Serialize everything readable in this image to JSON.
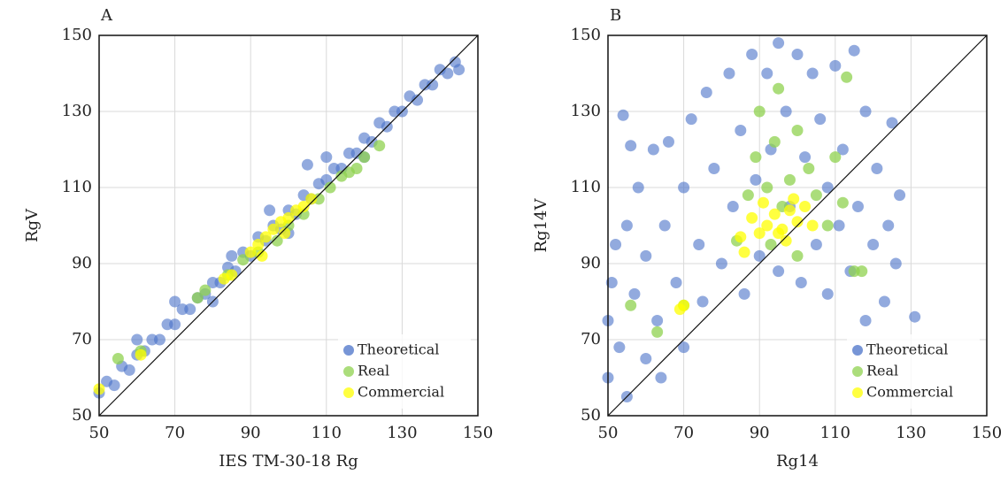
{
  "chart_data": [
    {
      "type": "scatter",
      "title": "A",
      "xlabel": "IES TM-30-18 Rg",
      "ylabel": "RgV",
      "xlim": [
        50,
        150
      ],
      "ylim": [
        50,
        150
      ],
      "xticks": [
        50,
        70,
        90,
        110,
        130,
        150
      ],
      "yticks": [
        50,
        70,
        90,
        110,
        130,
        150
      ],
      "grid": true,
      "identity_line": true,
      "legend": "lower right",
      "series": [
        {
          "name": "Theoretical",
          "color": "#4a72c8",
          "x": [
            50,
            52,
            54,
            56,
            58,
            60,
            62,
            64,
            66,
            68,
            70,
            72,
            74,
            76,
            78,
            80,
            82,
            84,
            86,
            88,
            90,
            92,
            94,
            96,
            98,
            100,
            102,
            104,
            106,
            108,
            110,
            112,
            114,
            116,
            118,
            120,
            122,
            124,
            126,
            128,
            130,
            132,
            134,
            136,
            138,
            140,
            142,
            144,
            145,
            95,
            105,
            60,
            80,
            120,
            100,
            70,
            85,
            110
          ],
          "values": [
            56,
            59,
            58,
            63,
            62,
            66,
            67,
            70,
            70,
            74,
            74,
            78,
            78,
            81,
            82,
            85,
            85,
            89,
            88,
            93,
            92,
            97,
            96,
            100,
            99,
            104,
            103,
            108,
            107,
            111,
            112,
            115,
            115,
            119,
            119,
            123,
            122,
            127,
            126,
            130,
            130,
            134,
            133,
            137,
            137,
            141,
            140,
            143,
            141,
            104,
            116,
            70,
            80,
            118,
            98,
            80,
            92,
            118
          ]
        },
        {
          "name": "Real",
          "color": "#8fd14f",
          "x": [
            55,
            61,
            76,
            78,
            84,
            88,
            92,
            97,
            100,
            104,
            108,
            111,
            114,
            116,
            118,
            120,
            124
          ],
          "values": [
            65,
            67,
            81,
            83,
            87,
            91,
            93,
            96,
            100,
            103,
            107,
            110,
            113,
            114,
            115,
            118,
            121
          ]
        },
        {
          "name": "Commercial",
          "color": "#ffff00",
          "x": [
            50,
            61,
            83,
            85,
            90,
            92,
            94,
            96,
            98,
            100,
            102,
            104,
            106,
            93,
            99
          ],
          "values": [
            57,
            66,
            86,
            87,
            93,
            95,
            97,
            99,
            101,
            102,
            104,
            105,
            107,
            92,
            98
          ]
        }
      ]
    },
    {
      "type": "scatter",
      "title": "B",
      "xlabel": "Rg14",
      "ylabel": "Rg14V",
      "xlim": [
        50,
        150
      ],
      "ylim": [
        50,
        150
      ],
      "xticks": [
        50,
        70,
        90,
        110,
        130,
        150
      ],
      "yticks": [
        50,
        70,
        90,
        110,
        130,
        150
      ],
      "grid": true,
      "identity_line": true,
      "legend": "lower right",
      "series": [
        {
          "name": "Theoretical",
          "color": "#4a72c8",
          "x": [
            50,
            50,
            51,
            52,
            53,
            54,
            55,
            55,
            57,
            58,
            60,
            60,
            62,
            63,
            65,
            66,
            68,
            70,
            70,
            72,
            74,
            75,
            76,
            78,
            80,
            82,
            83,
            85,
            86,
            88,
            89,
            90,
            92,
            93,
            95,
            95,
            97,
            98,
            100,
            101,
            102,
            104,
            105,
            106,
            108,
            108,
            110,
            111,
            112,
            114,
            115,
            116,
            118,
            118,
            120,
            121,
            123,
            124,
            126,
            127,
            131,
            125,
            56,
            64
          ],
          "values": [
            60,
            75,
            85,
            95,
            68,
            129,
            55,
            100,
            82,
            110,
            65,
            92,
            120,
            75,
            100,
            122,
            85,
            110,
            68,
            128,
            95,
            80,
            135,
            115,
            90,
            140,
            105,
            125,
            82,
            145,
            112,
            92,
            140,
            120,
            88,
            148,
            130,
            105,
            145,
            85,
            118,
            140,
            95,
            128,
            82,
            110,
            142,
            100,
            120,
            88,
            146,
            105,
            75,
            130,
            95,
            115,
            80,
            100,
            90,
            108,
            76,
            127,
            121,
            60
          ]
        },
        {
          "name": "Real",
          "color": "#8fd14f",
          "x": [
            56,
            63,
            84,
            87,
            89,
            90,
            92,
            94,
            95,
            96,
            98,
            100,
            103,
            105,
            108,
            110,
            113,
            112,
            115,
            117,
            100,
            93,
            70
          ],
          "values": [
            79,
            72,
            96,
            108,
            118,
            130,
            110,
            122,
            136,
            105,
            112,
            125,
            115,
            108,
            100,
            118,
            139,
            106,
            88,
            88,
            92,
            95,
            79
          ]
        },
        {
          "name": "Commercial",
          "color": "#ffff00",
          "x": [
            69,
            70,
            85,
            88,
            90,
            92,
            94,
            95,
            96,
            98,
            100,
            102,
            104,
            97,
            99,
            91,
            86
          ],
          "values": [
            78,
            79,
            97,
            102,
            98,
            100,
            103,
            98,
            99,
            104,
            101,
            105,
            100,
            96,
            107,
            106,
            93
          ]
        }
      ]
    }
  ]
}
